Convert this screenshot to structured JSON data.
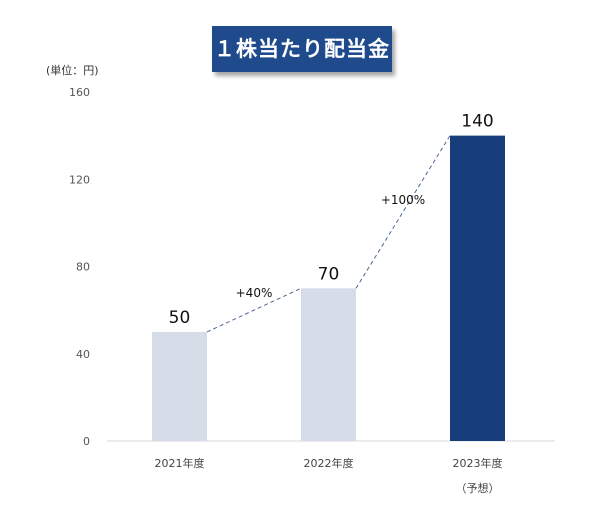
{
  "chart_data": {
    "type": "bar",
    "title": "１株当たり配当金",
    "unit_label": "(単位：円)",
    "categories": [
      "2021年度",
      "2022年度",
      "2023年度"
    ],
    "category_sublabels": [
      "",
      "",
      "（予想）"
    ],
    "values": [
      50,
      70,
      140
    ],
    "data_labels": [
      "50",
      "70",
      "140"
    ],
    "ylim": [
      0,
      160
    ],
    "yticks": [
      0,
      40,
      80,
      120,
      160
    ],
    "grid": false,
    "colors": [
      "#d6dce8",
      "#d6dce8",
      "#173e7a"
    ],
    "annotations": [
      {
        "text": "+40%",
        "from": "2021年度",
        "to": "2022年度"
      },
      {
        "text": "+100%",
        "from": "2022年度",
        "to": "2023年度"
      }
    ],
    "connector_color": "#4a6a94"
  }
}
